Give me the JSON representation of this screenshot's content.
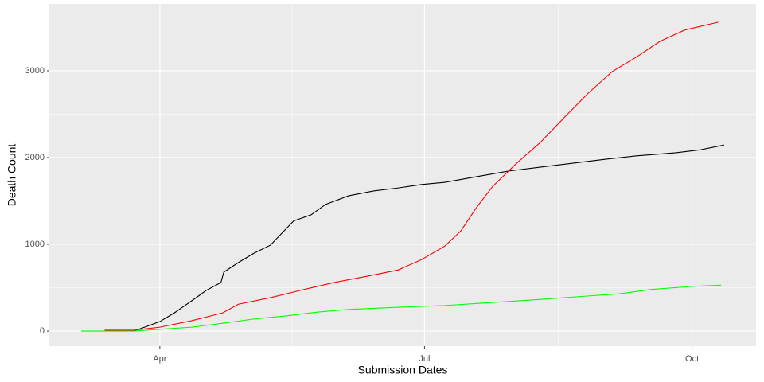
{
  "chart_data": {
    "type": "line",
    "x_label": "Submission Dates",
    "y_label": "Death Count",
    "xlim": [
      53,
      296
    ],
    "ylim": [
      -174,
      3770
    ],
    "xticks": [
      {
        "value": 91,
        "label": "Apr"
      },
      {
        "value": 182,
        "label": "Jul"
      },
      {
        "value": 274,
        "label": "Oct"
      }
    ],
    "yticks": [
      0,
      1000,
      2000,
      3000
    ],
    "grid": true,
    "series": [
      {
        "color": "#000000",
        "x": [
          82,
          86.6,
          91,
          96,
          102,
          107,
          112,
          113,
          118,
          123.5,
          129,
          133,
          137,
          143,
          148,
          156,
          164.5,
          173,
          181,
          189,
          200,
          211,
          222,
          233,
          244,
          255,
          268.5,
          277,
          285
        ],
        "values": [
          0,
          55,
          110,
          210,
          350,
          470,
          560,
          680,
          790,
          900,
          990,
          1130,
          1270,
          1340,
          1460,
          1560,
          1615,
          1650,
          1690,
          1715,
          1780,
          1845,
          1890,
          1935,
          1980,
          2020,
          2055,
          2090,
          2145
        ]
      },
      {
        "color": "#ff0000",
        "x": [
          72,
          82,
          91,
          102,
          112.6,
          118,
          129,
          140,
          151,
          162,
          173,
          181,
          189,
          194.5,
          200,
          205.5,
          213.7,
          222,
          230,
          238.4,
          246.5,
          254.7,
          263,
          271.5,
          283
        ],
        "values": [
          10,
          10,
          45,
          120,
          210,
          310,
          385,
          475,
          560,
          630,
          705,
          825,
          980,
          1155,
          1430,
          1670,
          1935,
          2180,
          2460,
          2745,
          2990,
          3155,
          3340,
          3470,
          3560
        ]
      },
      {
        "color": "#00ff00",
        "x": [
          64,
          82,
          91,
          102,
          112.6,
          123.5,
          134.4,
          145.4,
          156,
          173,
          189,
          205.5,
          222,
          238.4,
          249,
          260,
          274,
          284
        ],
        "values": [
          0,
          0,
          20,
          45,
          90,
          140,
          175,
          220,
          250,
          275,
          295,
          330,
          365,
          405,
          430,
          480,
          515,
          530
        ]
      }
    ]
  }
}
